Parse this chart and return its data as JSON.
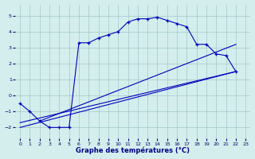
{
  "xlabel": "Graphe des températures (°C)",
  "background_color": "#d4eeed",
  "line_color": "#0000bb",
  "grid_color": "#a0c8c8",
  "xlim": [
    -0.5,
    23.5
  ],
  "ylim": [
    -2.7,
    5.7
  ],
  "xticks": [
    0,
    1,
    2,
    3,
    4,
    5,
    6,
    7,
    8,
    9,
    10,
    11,
    12,
    13,
    14,
    15,
    16,
    17,
    18,
    19,
    20,
    21,
    22,
    23
  ],
  "yticks": [
    -2,
    -1,
    0,
    1,
    2,
    3,
    4,
    5
  ],
  "curve1_x": [
    0,
    1,
    2,
    3,
    4,
    5,
    6,
    7,
    8,
    9,
    10,
    11,
    12,
    13,
    14,
    15,
    16,
    17,
    18,
    19,
    20,
    21,
    22
  ],
  "curve1_y": [
    -0.5,
    -1.0,
    -1.6,
    -2.0,
    -2.0,
    -2.0,
    3.3,
    3.3,
    3.6,
    3.8,
    4.0,
    4.6,
    4.8,
    4.8,
    4.9,
    4.7,
    4.5,
    4.3,
    3.2,
    3.2,
    2.6,
    2.5,
    1.5
  ],
  "curve2_x": [
    0,
    22
  ],
  "curve2_y": [
    -2.0,
    1.5
  ],
  "curve3_x": [
    0,
    22
  ],
  "curve3_y": [
    -1.7,
    1.5
  ],
  "curve4_x": [
    2,
    22
  ],
  "curve4_y": [
    -1.6,
    3.2
  ]
}
